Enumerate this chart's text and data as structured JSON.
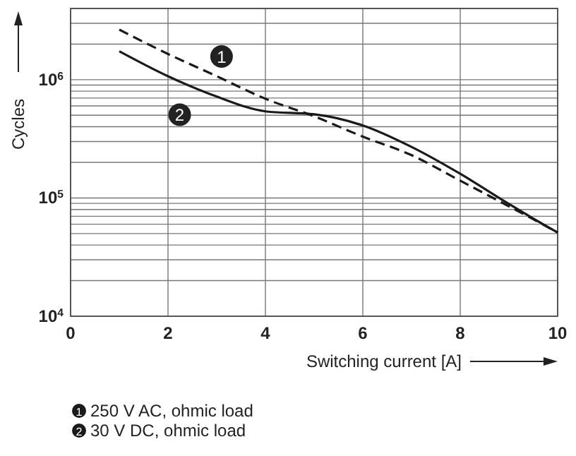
{
  "chart_data": {
    "type": "line",
    "xlabel": "Switching current [A]",
    "ylabel": "Cycles",
    "log": "y",
    "grid": true,
    "legend": "bottom left",
    "xlim": [
      0,
      10
    ],
    "xticks": [
      0,
      2,
      4,
      6,
      8,
      10
    ],
    "ylim": [
      10000,
      4000000
    ],
    "yticks": [
      {
        "value": 10000,
        "label": "10$^{4}$"
      },
      {
        "value": 100000,
        "label": "10$^{5}$"
      },
      {
        "value": 1000000,
        "label": "10$^{6}$"
      }
    ],
    "x": [
      1,
      2,
      3,
      4,
      5,
      6,
      7,
      8,
      9,
      9.5,
      10
    ],
    "series": [
      {
        "name": "250 V AC, ohmic load",
        "color": "#1a1a1a",
        "line_style": "dashed",
        "values": [
          2650000,
          1650000,
          1070000,
          690000,
          490000,
          330000,
          230000,
          140000,
          85000,
          66000,
          51000
        ]
      },
      {
        "name": "30 V DC, ohmic load",
        "color": "#1a1a1a",
        "line_style": "solid",
        "values": [
          1740000,
          1070000,
          720000,
          540000,
          510000,
          410000,
          270000,
          160000,
          89000,
          67000,
          51000
        ]
      }
    ],
    "annotations": [
      {
        "text": "1",
        "x": 3.1,
        "y": 1570000
      },
      {
        "text": "2",
        "x": 2.24,
        "y": 506000
      }
    ]
  }
}
